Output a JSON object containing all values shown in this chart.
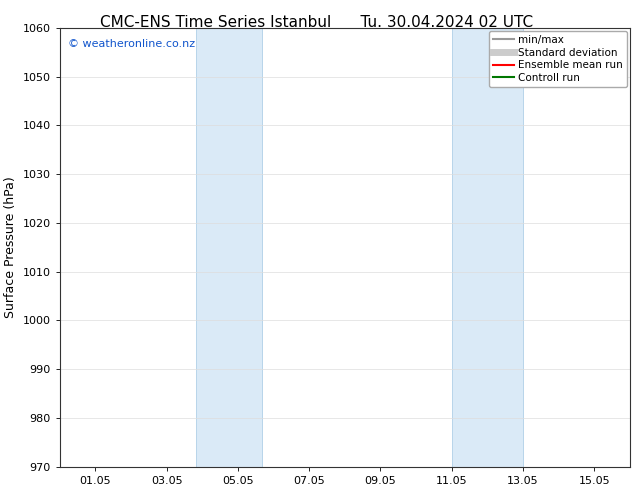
{
  "title_left": "CMC-ENS Time Series Istanbul",
  "title_right": "Tu. 30.04.2024 02 UTC",
  "ylabel": "Surface Pressure (hPa)",
  "ylim": [
    970,
    1060
  ],
  "yticks": [
    970,
    980,
    990,
    1000,
    1010,
    1020,
    1030,
    1040,
    1050,
    1060
  ],
  "xlim": [
    0,
    16
  ],
  "xtick_labels": [
    "01.05",
    "03.05",
    "05.05",
    "07.05",
    "09.05",
    "11.05",
    "13.05",
    "15.05"
  ],
  "xtick_positions": [
    1,
    3,
    5,
    7,
    9,
    11,
    13,
    15
  ],
  "shaded_regions": [
    {
      "xmin": 3.833,
      "xmax": 5.667
    },
    {
      "xmin": 11.0,
      "xmax": 13.0
    }
  ],
  "shaded_color": "#daeaf7",
  "shaded_edge_color": "#b0cfe8",
  "watermark_text": "© weatheronline.co.nz",
  "watermark_color": "#1155cc",
  "watermark_fontsize": 8,
  "legend_items": [
    {
      "label": "min/max",
      "color": "#999999",
      "lw": 1.5
    },
    {
      "label": "Standard deviation",
      "color": "#cccccc",
      "lw": 5
    },
    {
      "label": "Ensemble mean run",
      "color": "#ff0000",
      "lw": 1.5
    },
    {
      "label": "Controll run",
      "color": "#007700",
      "lw": 1.5
    }
  ],
  "bg_color": "#ffffff",
  "grid_color": "#dddddd",
  "title_fontsize": 11,
  "axis_label_fontsize": 9,
  "tick_fontsize": 8,
  "legend_fontsize": 7.5
}
